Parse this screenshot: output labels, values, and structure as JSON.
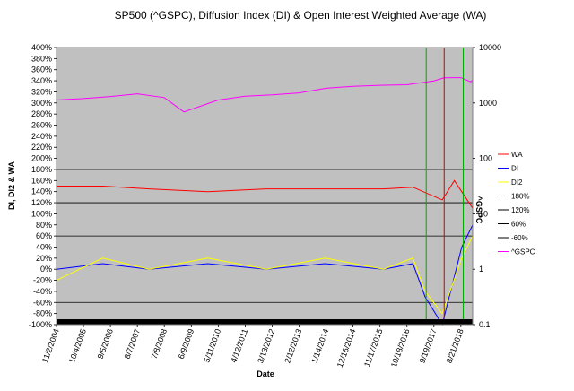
{
  "chart_data": {
    "type": "line",
    "title": "SP500 (^GSPC), Diffusion Index (DI) & Open Interest Weighted Average (WA)",
    "xlabel": "Date",
    "ylabel": "DI, DI2 & WA",
    "y2label": "^GSPC",
    "x_start": "11/2/2004",
    "x_end": "1/15/2019",
    "x_tick_labels": [
      "11/2/2004",
      "10/4/2005",
      "9/5/2006",
      "8/7/2007",
      "7/8/2008",
      "6/9/2009",
      "5/11/2010",
      "4/12/2011",
      "3/13/2012",
      "2/12/2013",
      "1/14/2014",
      "12/16/2014",
      "11/17/2015",
      "10/18/2016",
      "9/19/2017",
      "8/21/2018"
    ],
    "ylim": [
      -100,
      400
    ],
    "y_tick_labels": [
      "-100%",
      "-80%",
      "-60%",
      "-40%",
      "-20%",
      "0%",
      "20%",
      "40%",
      "60%",
      "80%",
      "100%",
      "120%",
      "140%",
      "160%",
      "180%",
      "200%",
      "220%",
      "240%",
      "260%",
      "280%",
      "300%",
      "320%",
      "340%",
      "360%",
      "380%",
      "400%"
    ],
    "y2_scale": "log",
    "y2lim": [
      0.1,
      10000
    ],
    "y2_tick_labels": [
      "0.1",
      "1",
      "10",
      "100",
      "1000",
      "10000"
    ],
    "reference_lines": [
      {
        "name": "180%",
        "value": 180,
        "color": "#000000"
      },
      {
        "name": "120%",
        "value": 120,
        "color": "#000000"
      },
      {
        "name": "60%",
        "value": 60,
        "color": "#000000"
      },
      {
        "name": "-60%",
        "value": -60,
        "color": "#000000"
      }
    ],
    "vertical_markers": [
      {
        "date": "6/15/2017",
        "color": "#00aa00"
      },
      {
        "date": "1/25/2018",
        "color": "#cc0000"
      },
      {
        "date": "9/20/2018",
        "color": "#00aa00"
      }
    ],
    "series": [
      {
        "name": "WA",
        "axis": "left",
        "color": "#ff0000",
        "x": [
          "11/2/2004",
          "6/1/2006",
          "1/1/2008",
          "1/1/2010",
          "1/1/2012",
          "1/1/2014",
          "1/1/2016",
          "1/1/2017",
          "1/1/2018",
          "6/1/2018",
          "1/15/2019"
        ],
        "y": [
          150,
          150,
          145,
          140,
          145,
          145,
          145,
          148,
          125,
          160,
          110
        ]
      },
      {
        "name": "DI",
        "axis": "left",
        "color": "#0000ff",
        "x": [
          "11/2/2004",
          "6/1/2006",
          "1/1/2008",
          "1/1/2010",
          "1/1/2012",
          "1/1/2014",
          "1/1/2016",
          "1/1/2017",
          "6/1/2017",
          "1/1/2018",
          "9/1/2018",
          "1/15/2019"
        ],
        "y": [
          0,
          10,
          0,
          10,
          0,
          10,
          0,
          10,
          -50,
          -100,
          40,
          80
        ]
      },
      {
        "name": "DI2",
        "axis": "left",
        "color": "#ffff00",
        "x": [
          "11/2/2004",
          "6/1/2006",
          "1/1/2008",
          "1/1/2010",
          "1/1/2012",
          "1/1/2014",
          "1/1/2016",
          "1/1/2017",
          "6/1/2017",
          "1/1/2018",
          "9/1/2018",
          "1/15/2019"
        ],
        "y": [
          -20,
          20,
          0,
          20,
          0,
          20,
          0,
          20,
          -40,
          -80,
          20,
          60
        ]
      },
      {
        "name": "180%",
        "axis": "left",
        "color": "#000000",
        "x": [],
        "y": []
      },
      {
        "name": "120%",
        "axis": "left",
        "color": "#000000",
        "x": [],
        "y": []
      },
      {
        "name": "60%",
        "axis": "left",
        "color": "#000000",
        "x": [],
        "y": []
      },
      {
        "name": "-60%",
        "axis": "left",
        "color": "#000000",
        "x": [],
        "y": []
      },
      {
        "name": "^GSPC",
        "axis": "right",
        "color": "#ff00ff",
        "x": [
          "11/2/2004",
          "10/4/2005",
          "9/5/2006",
          "8/7/2007",
          "7/8/2008",
          "3/9/2009",
          "5/11/2010",
          "4/12/2011",
          "3/13/2012",
          "2/12/2013",
          "1/14/2014",
          "12/16/2014",
          "11/17/2015",
          "10/18/2016",
          "9/19/2017",
          "1/25/2018",
          "8/21/2018",
          "12/24/2018",
          "1/15/2019"
        ],
        "y": [
          1130,
          1200,
          1310,
          1460,
          1250,
          690,
          1130,
          1320,
          1400,
          1520,
          1840,
          2000,
          2080,
          2130,
          2500,
          2840,
          2860,
          2400,
          2600
        ]
      }
    ],
    "legend_position": "right",
    "grid": false,
    "plot_background": "#c0c0c0",
    "bottom_band_color": "#000000"
  }
}
